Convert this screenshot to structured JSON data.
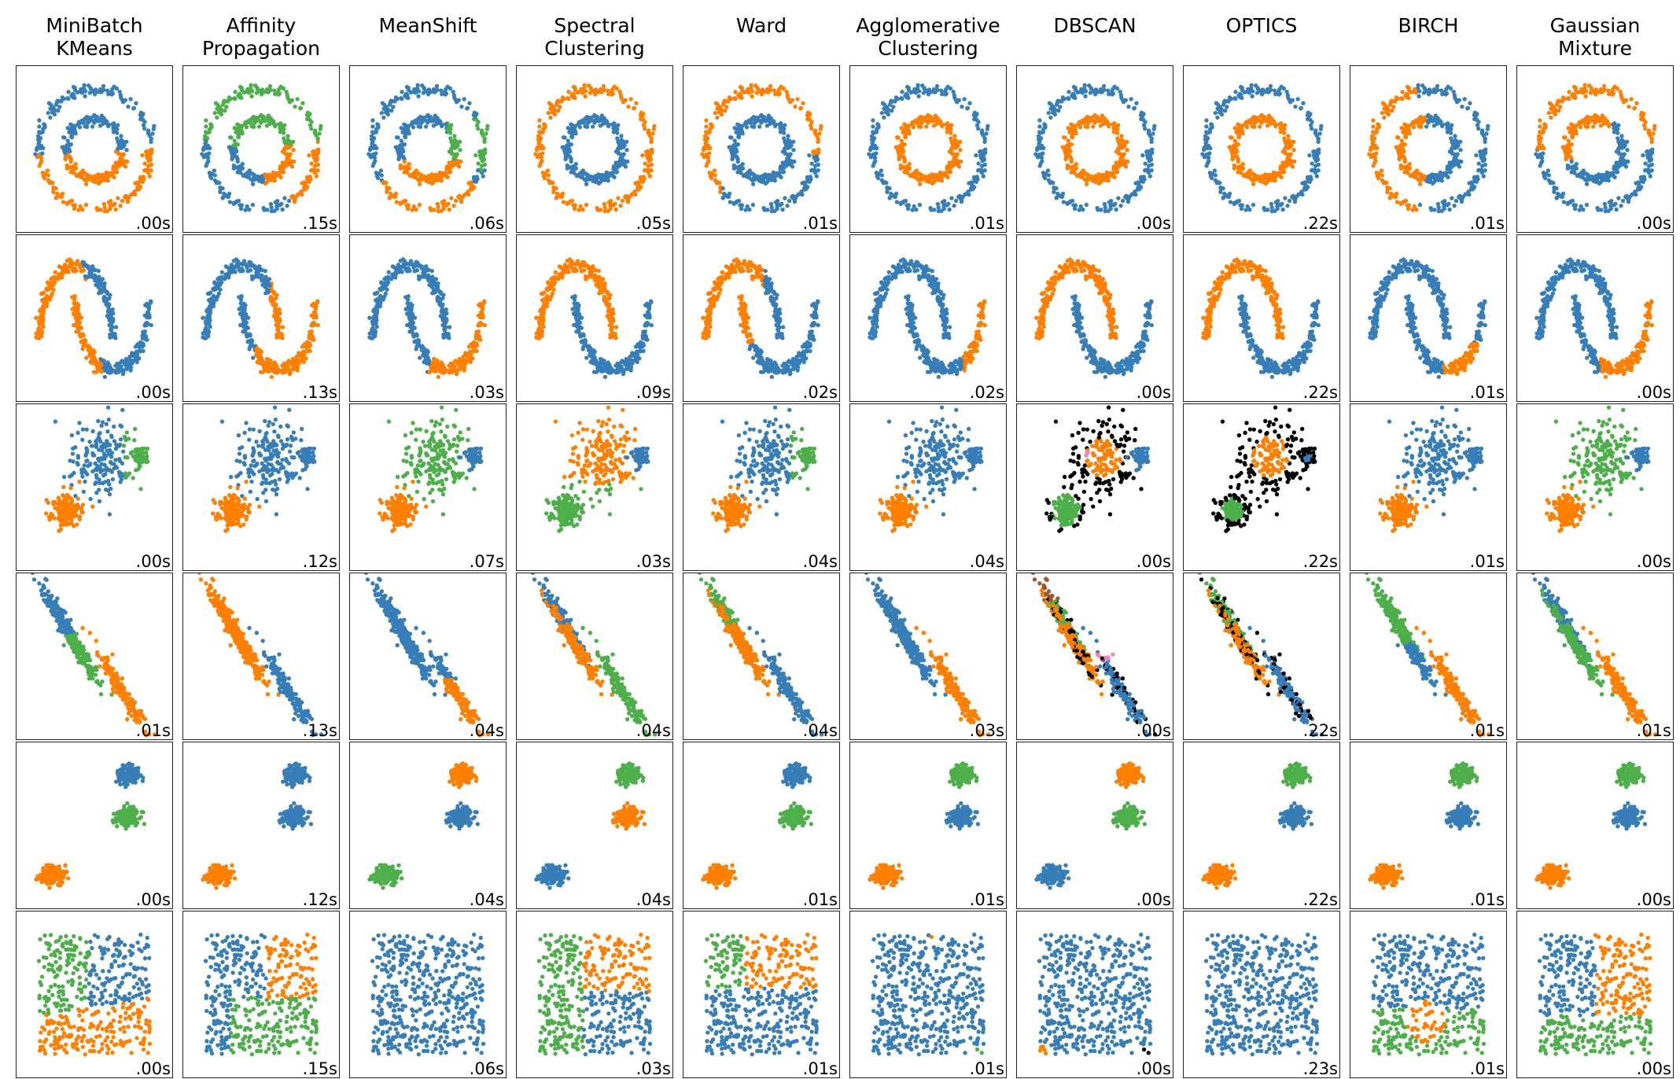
{
  "chart_data": {
    "type": "scatter",
    "description_grid": "6 rows (datasets) x 10 columns (clustering algorithms); each panel shows 2D points colored by cluster label with runtime annotation",
    "columns": [
      "MiniBatch\nKMeans",
      "Affinity\nPropagation",
      "MeanShift",
      "Spectral\nClustering",
      "Ward",
      "Agglomerative\nClustering",
      "DBSCAN",
      "OPTICS",
      "BIRCH",
      "Gaussian\nMixture"
    ],
    "datasets": [
      "noisy_circles",
      "noisy_moons",
      "varied",
      "aniso",
      "blobs",
      "no_structure"
    ],
    "colors": {
      "blue": "#377eb8",
      "orange": "#ff7f00",
      "green": "#4daf4a",
      "pink": "#f781bf",
      "brown": "#a65628",
      "purple": "#984ea3",
      "noise": "#000000"
    },
    "timings": [
      [
        ".00s",
        ".15s",
        ".06s",
        ".05s",
        ".01s",
        ".01s",
        ".00s",
        ".22s",
        ".01s",
        ".00s"
      ],
      [
        ".00s",
        ".13s",
        ".03s",
        ".09s",
        ".02s",
        ".02s",
        ".00s",
        ".22s",
        ".01s",
        ".00s"
      ],
      [
        ".00s",
        ".12s",
        ".07s",
        ".03s",
        ".04s",
        ".04s",
        ".00s",
        ".22s",
        ".01s",
        ".00s"
      ],
      [
        ".01s",
        ".13s",
        ".04s",
        ".04s",
        ".04s",
        ".03s",
        ".00s",
        ".22s",
        ".01s",
        ".01s"
      ],
      [
        ".00s",
        ".12s",
        ".04s",
        ".04s",
        ".01s",
        ".01s",
        ".00s",
        ".22s",
        ".01s",
        ".00s"
      ],
      [
        ".00s",
        ".15s",
        ".06s",
        ".03s",
        ".01s",
        ".01s",
        ".00s",
        ".23s",
        ".01s",
        ".00s"
      ]
    ],
    "panel_colorings": [
      [
        "circles_split_kmeans",
        "circles_affinity",
        "circles_meanshift",
        "circles_outer_orange",
        "circles_outer_orange_ward",
        "circles_inner_orange",
        "circles_inner_orange",
        "circles_inner_orange",
        "circles_birch",
        "circles_gmm"
      ],
      [
        "moons_kmeans",
        "moons_affinity",
        "moons_meanshift",
        "moons_correct_orange_top",
        "moons_ward",
        "moons_agglo",
        "moons_correct_orange_top",
        "moons_correct_orange_top",
        "moons_birch",
        "moons_gmm"
      ],
      [
        "varied_kmeans",
        "varied_affinity",
        "varied_meanshift",
        "varied_spectral",
        "varied_ward",
        "varied_agglo",
        "varied_dbscan",
        "varied_optics",
        "varied_birch",
        "varied_gmm"
      ],
      [
        "aniso_kmeans",
        "aniso_affinity",
        "aniso_meanshift",
        "aniso_spectral",
        "aniso_ward",
        "aniso_agglo",
        "aniso_dbscan",
        "aniso_optics",
        "aniso_birch",
        "aniso_gmm"
      ],
      [
        "blobs_a",
        "blobs_b",
        "blobs_c",
        "blobs_d",
        "blobs_a",
        "blobs_e",
        "blobs_f",
        "blobs_e",
        "blobs_g",
        "blobs_e"
      ],
      [
        "nostruct_kmeans",
        "nostruct_affinity",
        "nostruct_single",
        "nostruct_spectral",
        "nostruct_ward",
        "nostruct_agglo",
        "nostruct_dbscan",
        "nostruct_single",
        "nostruct_birch",
        "nostruct_gmm"
      ]
    ]
  }
}
